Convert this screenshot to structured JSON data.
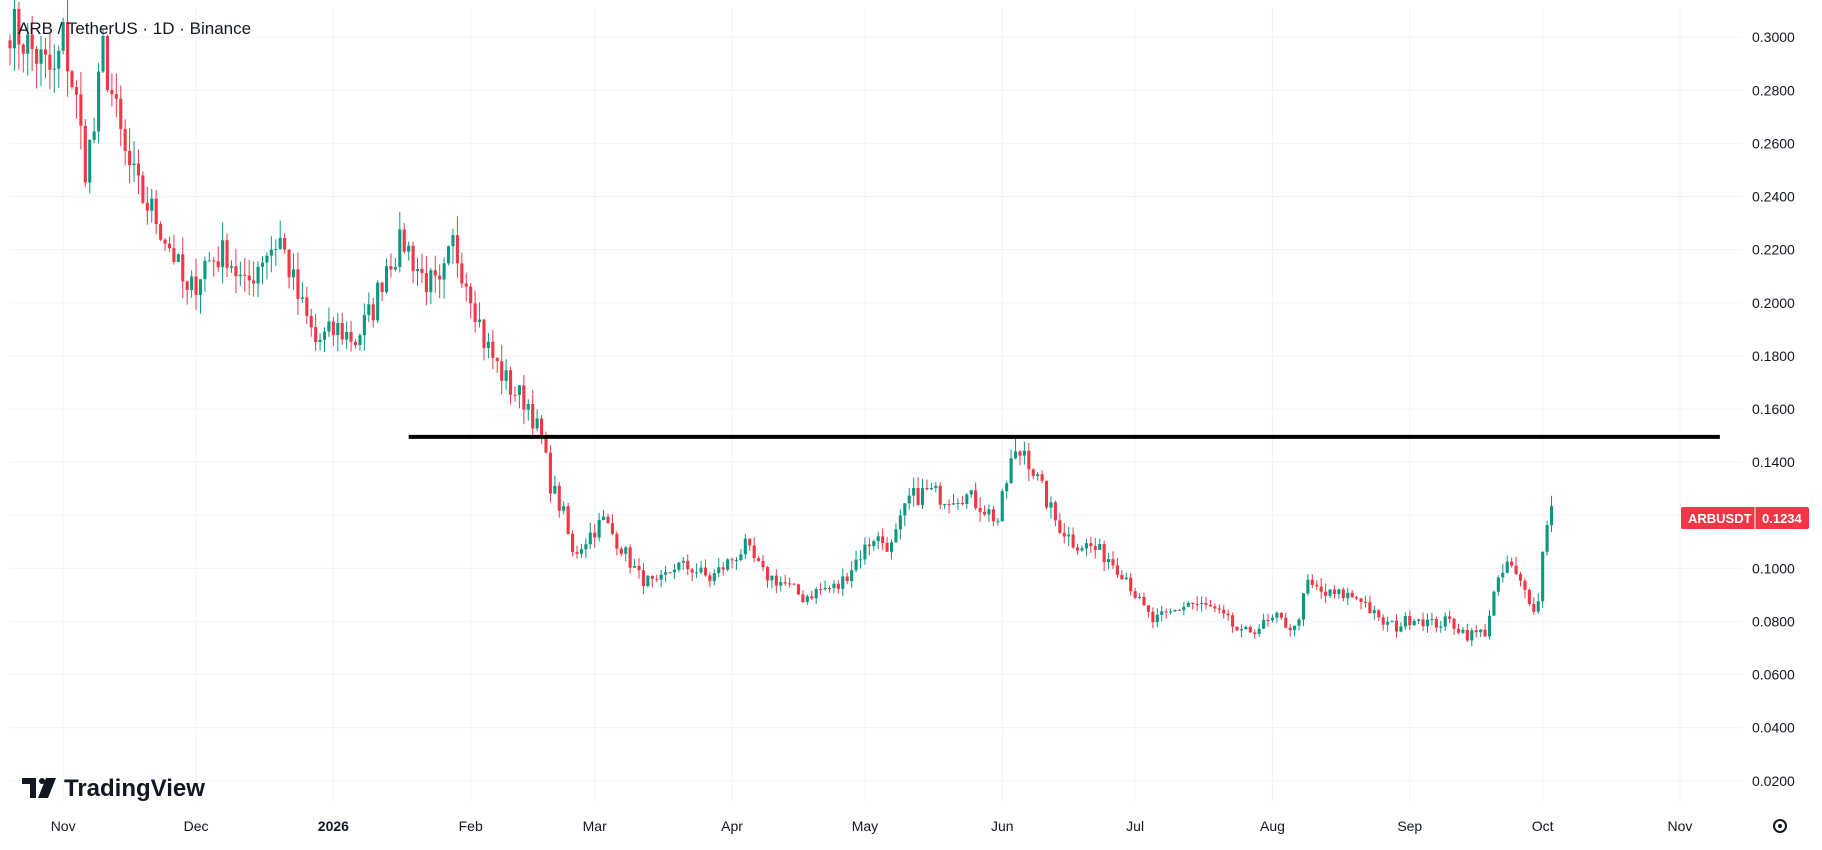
{
  "header": {
    "symbol": "ARB",
    "separator": " / ",
    "quote": "TetherUS",
    "interval": "1D",
    "exchange": "Binance",
    "title": "ARB / TetherUS · 1D · Binance"
  },
  "branding": {
    "logo_text": "TradingView"
  },
  "price_badge": {
    "symbol": "ARBUSDT",
    "value": "0.1234",
    "color": "#f23645"
  },
  "colors": {
    "up": "#089981",
    "down": "#f23645",
    "grid": "#f0f3fa",
    "line": "#000000",
    "axis_text": "#131722"
  },
  "icons": {
    "settings": "gear-icon"
  },
  "chart_data": {
    "type": "candlestick",
    "title": "ARB / TetherUS · 1D · Binance",
    "ylim": [
      0.012,
      0.311
    ],
    "y_ticks": [
      "0.3000",
      "0.2800",
      "0.2600",
      "0.2400",
      "0.2200",
      "0.2000",
      "0.1800",
      "0.1600",
      "0.1400",
      "0.1200",
      "0.1000",
      "0.0800",
      "0.0600",
      "0.0400",
      "0.0200"
    ],
    "x_ticks": [
      {
        "label": "Nov",
        "bold": false
      },
      {
        "label": "Dec",
        "bold": false
      },
      {
        "label": "2026",
        "bold": true
      },
      {
        "label": "Feb",
        "bold": false
      },
      {
        "label": "Mar",
        "bold": false
      },
      {
        "label": "Apr",
        "bold": false
      },
      {
        "label": "May",
        "bold": false
      },
      {
        "label": "Jun",
        "bold": false
      },
      {
        "label": "Jul",
        "bold": false
      },
      {
        "label": "Aug",
        "bold": false
      },
      {
        "label": "Sep",
        "bold": false
      },
      {
        "label": "Oct",
        "bold": false
      },
      {
        "label": "Nov",
        "bold": false
      }
    ],
    "x_range": [
      "2025-10-20",
      "2026-11-15"
    ],
    "horizontal_line": {
      "price": 0.1495,
      "from": "2026-01-18",
      "to": "2026-11-10"
    },
    "last_price": 0.1234,
    "candles_start": "2025-10-20",
    "price_path": [
      [
        "2025-10-20",
        0.305
      ],
      [
        "2025-10-25",
        0.295
      ],
      [
        "2025-10-30",
        0.285
      ],
      [
        "2025-11-01",
        0.3
      ],
      [
        "2025-11-04",
        0.275
      ],
      [
        "2025-11-06",
        0.252
      ],
      [
        "2025-11-08",
        0.265
      ],
      [
        "2025-11-10",
        0.295
      ],
      [
        "2025-11-13",
        0.27
      ],
      [
        "2025-11-15",
        0.255
      ],
      [
        "2025-11-18",
        0.242
      ],
      [
        "2025-11-22",
        0.232
      ],
      [
        "2025-11-26",
        0.218
      ],
      [
        "2025-11-29",
        0.202
      ],
      [
        "2025-12-03",
        0.215
      ],
      [
        "2025-12-08",
        0.219
      ],
      [
        "2025-12-12",
        0.205
      ],
      [
        "2025-12-16",
        0.218
      ],
      [
        "2025-12-20",
        0.224
      ],
      [
        "2025-12-24",
        0.202
      ],
      [
        "2025-12-28",
        0.185
      ],
      [
        "2026-01-02",
        0.19
      ],
      [
        "2026-01-06",
        0.186
      ],
      [
        "2026-01-10",
        0.198
      ],
      [
        "2026-01-13",
        0.215
      ],
      [
        "2026-01-17",
        0.223
      ],
      [
        "2026-01-21",
        0.21
      ],
      [
        "2026-01-25",
        0.204
      ],
      [
        "2026-01-28",
        0.222
      ],
      [
        "2026-02-01",
        0.205
      ],
      [
        "2026-02-04",
        0.186
      ],
      [
        "2026-02-07",
        0.176
      ],
      [
        "2026-02-10",
        0.168
      ],
      [
        "2026-02-14",
        0.162
      ],
      [
        "2026-02-17",
        0.148
      ],
      [
        "2026-02-19",
        0.132
      ],
      [
        "2026-02-22",
        0.12
      ],
      [
        "2026-02-24",
        0.105
      ],
      [
        "2026-02-28",
        0.113
      ],
      [
        "2026-03-03",
        0.118
      ],
      [
        "2026-03-07",
        0.108
      ],
      [
        "2026-03-11",
        0.097
      ],
      [
        "2026-03-15",
        0.093
      ],
      [
        "2026-03-19",
        0.101
      ],
      [
        "2026-03-23",
        0.1
      ],
      [
        "2026-03-27",
        0.096
      ],
      [
        "2026-03-31",
        0.102
      ],
      [
        "2026-04-04",
        0.108
      ],
      [
        "2026-04-08",
        0.098
      ],
      [
        "2026-04-13",
        0.094
      ],
      [
        "2026-04-17",
        0.089
      ],
      [
        "2026-04-21",
        0.092
      ],
      [
        "2026-04-25",
        0.093
      ],
      [
        "2026-04-29",
        0.103
      ],
      [
        "2026-05-03",
        0.112
      ],
      [
        "2026-05-07",
        0.108
      ],
      [
        "2026-05-11",
        0.126
      ],
      [
        "2026-05-15",
        0.129
      ],
      [
        "2026-05-19",
        0.127
      ],
      [
        "2026-05-23",
        0.128
      ],
      [
        "2026-05-27",
        0.124
      ],
      [
        "2026-05-31",
        0.118
      ],
      [
        "2026-06-03",
        0.14
      ],
      [
        "2026-06-06",
        0.145
      ],
      [
        "2026-06-09",
        0.133
      ],
      [
        "2026-06-13",
        0.118
      ],
      [
        "2026-06-17",
        0.11
      ],
      [
        "2026-06-21",
        0.108
      ],
      [
        "2026-06-25",
        0.104
      ],
      [
        "2026-06-29",
        0.097
      ],
      [
        "2026-07-02",
        0.087
      ],
      [
        "2026-07-05",
        0.08
      ],
      [
        "2026-07-09",
        0.083
      ],
      [
        "2026-07-13",
        0.087
      ],
      [
        "2026-07-18",
        0.085
      ],
      [
        "2026-07-22",
        0.08
      ],
      [
        "2026-07-25",
        0.075
      ],
      [
        "2026-07-29",
        0.078
      ],
      [
        "2026-08-02",
        0.081
      ],
      [
        "2026-08-06",
        0.077
      ],
      [
        "2026-08-09",
        0.094
      ],
      [
        "2026-08-13",
        0.09
      ],
      [
        "2026-08-17",
        0.09
      ],
      [
        "2026-08-21",
        0.089
      ],
      [
        "2026-08-25",
        0.08
      ],
      [
        "2026-08-29",
        0.078
      ],
      [
        "2026-09-02",
        0.082
      ],
      [
        "2026-09-06",
        0.079
      ],
      [
        "2026-09-10",
        0.08
      ],
      [
        "2026-09-14",
        0.075
      ],
      [
        "2026-09-18",
        0.076
      ],
      [
        "2026-09-20",
        0.09
      ],
      [
        "2026-09-23",
        0.102
      ],
      [
        "2026-09-26",
        0.094
      ],
      [
        "2026-09-29",
        0.086
      ],
      [
        "2026-09-30",
        0.087
      ],
      [
        "2026-10-01",
        0.108
      ],
      [
        "2026-10-03",
        0.1234
      ]
    ]
  }
}
